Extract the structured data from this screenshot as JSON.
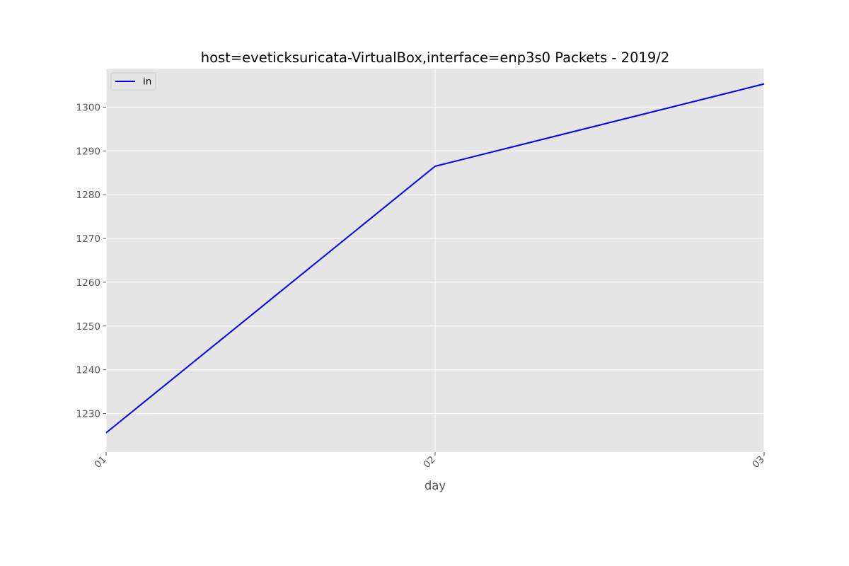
{
  "chart_data": {
    "type": "line",
    "title": "host=eveticksuricata-VirtualBox,interface=enp3s0 Packets - 2019/2",
    "xlabel": "day",
    "ylabel": "",
    "categories": [
      "01",
      "02",
      "03"
    ],
    "series": [
      {
        "name": "in",
        "color": "#0000ff",
        "values": [
          1225.6,
          1286.5,
          1305.3
        ]
      }
    ],
    "ylim": [
      1221.2,
      1308.8
    ],
    "yticks": [
      1230,
      1240,
      1250,
      1260,
      1270,
      1280,
      1290,
      1300
    ],
    "grid": true,
    "legend_position": "upper-left",
    "colors": {
      "plot_background": "#e5e5e5",
      "grid": "#ffffff",
      "tick_text": "#555555",
      "title_text": "#000000"
    }
  }
}
